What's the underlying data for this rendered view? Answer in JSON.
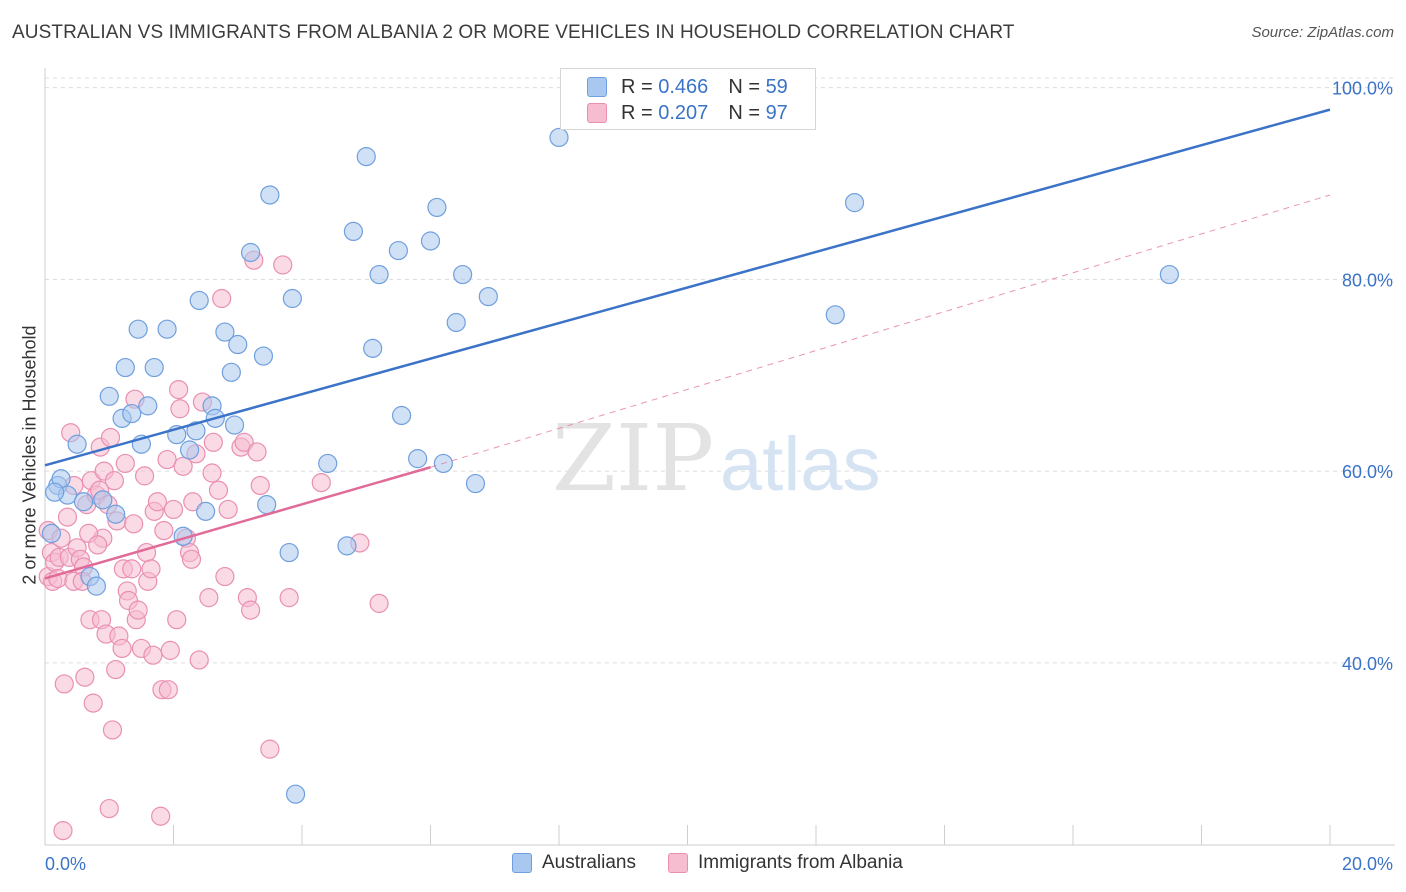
{
  "title": "AUSTRALIAN VS IMMIGRANTS FROM ALBANIA 2 OR MORE VEHICLES IN HOUSEHOLD CORRELATION CHART",
  "source": "Source: ZipAtlas.com",
  "watermark": {
    "zip": "ZIP",
    "atlas": "atlas"
  },
  "colors": {
    "blue": "#3b73c8",
    "blue_fill": "#a9c8ef",
    "blue_stroke": "#6f9fde",
    "pink": "#e06a98",
    "pink_fill": "#f6bcd0",
    "pink_stroke": "#ea8fb2",
    "tick_label": "#3b73c8"
  },
  "stats": {
    "australians": {
      "r_label": "R = ",
      "r_value": "0.466",
      "n_label": "N = ",
      "n_value": "59"
    },
    "albania": {
      "r_label": "R = ",
      "r_value": "0.207",
      "n_label": "N = ",
      "n_value": "97"
    }
  },
  "legend": {
    "australians": "Australians",
    "albania": "Immigrants from Albania"
  },
  "chart_data": {
    "type": "scatter",
    "title": "AUSTRALIAN VS IMMIGRANTS FROM ALBANIA 2 OR MORE VEHICLES IN HOUSEHOLD CORRELATION CHART",
    "xlabel": "",
    "ylabel": "2 or more Vehicles in Household",
    "xlim": [
      0,
      20
    ],
    "ylim": [
      21,
      101
    ],
    "x_tick_labels": [
      "0.0%",
      "20.0%"
    ],
    "y_ticks": [
      40,
      60,
      80,
      100
    ],
    "y_tick_labels": [
      "40.0%",
      "60.0%",
      "80.0%",
      "100.0%"
    ],
    "grid": true,
    "series": [
      {
        "name": "Australians",
        "points": [
          [
            0.1,
            53.5
          ],
          [
            0.2,
            58.5
          ],
          [
            0.25,
            59.2
          ],
          [
            0.35,
            57.5
          ],
          [
            0.5,
            62.8
          ],
          [
            0.6,
            56.8
          ],
          [
            0.7,
            49.0
          ],
          [
            0.8,
            48.0
          ],
          [
            0.9,
            57.0
          ],
          [
            1.0,
            67.8
          ],
          [
            1.1,
            55.5
          ],
          [
            1.2,
            65.5
          ],
          [
            1.25,
            70.8
          ],
          [
            1.35,
            66.0
          ],
          [
            1.45,
            74.8
          ],
          [
            1.5,
            62.8
          ],
          [
            1.6,
            66.8
          ],
          [
            1.7,
            70.8
          ],
          [
            1.9,
            74.8
          ],
          [
            2.05,
            63.8
          ],
          [
            2.15,
            53.2
          ],
          [
            2.25,
            62.2
          ],
          [
            2.35,
            64.2
          ],
          [
            2.4,
            77.8
          ],
          [
            2.5,
            55.8
          ],
          [
            2.6,
            66.8
          ],
          [
            2.65,
            65.5
          ],
          [
            2.8,
            74.5
          ],
          [
            2.9,
            70.3
          ],
          [
            2.95,
            64.8
          ],
          [
            3.0,
            73.2
          ],
          [
            3.2,
            82.8
          ],
          [
            3.4,
            72.0
          ],
          [
            3.45,
            56.5
          ],
          [
            3.5,
            88.8
          ],
          [
            3.8,
            51.5
          ],
          [
            3.85,
            78.0
          ],
          [
            3.9,
            26.3
          ],
          [
            4.4,
            60.8
          ],
          [
            4.7,
            52.2
          ],
          [
            4.8,
            85.0
          ],
          [
            5.0,
            92.8
          ],
          [
            5.1,
            72.8
          ],
          [
            5.2,
            80.5
          ],
          [
            5.5,
            83.0
          ],
          [
            5.55,
            65.8
          ],
          [
            5.8,
            61.3
          ],
          [
            6.0,
            84.0
          ],
          [
            6.1,
            87.5
          ],
          [
            6.2,
            60.8
          ],
          [
            6.4,
            75.5
          ],
          [
            6.5,
            80.5
          ],
          [
            6.7,
            58.7
          ],
          [
            6.9,
            78.2
          ],
          [
            8.0,
            94.8
          ],
          [
            12.3,
            76.3
          ],
          [
            12.6,
            88.0
          ],
          [
            17.5,
            80.5
          ],
          [
            0.15,
            57.8
          ]
        ]
      },
      {
        "name": "Immigrants from Albania",
        "points": [
          [
            0.05,
            53.8
          ],
          [
            0.05,
            49.0
          ],
          [
            0.1,
            51.5
          ],
          [
            0.12,
            48.5
          ],
          [
            0.15,
            50.5
          ],
          [
            0.2,
            48.8
          ],
          [
            0.22,
            51.0
          ],
          [
            0.25,
            53.0
          ],
          [
            0.28,
            22.5
          ],
          [
            0.3,
            37.8
          ],
          [
            0.35,
            55.2
          ],
          [
            0.38,
            51.0
          ],
          [
            0.4,
            64.0
          ],
          [
            0.45,
            48.5
          ],
          [
            0.5,
            52.0
          ],
          [
            0.55,
            50.8
          ],
          [
            0.6,
            50.0
          ],
          [
            0.62,
            38.5
          ],
          [
            0.65,
            56.5
          ],
          [
            0.7,
            44.5
          ],
          [
            0.72,
            59.0
          ],
          [
            0.75,
            35.8
          ],
          [
            0.8,
            57.5
          ],
          [
            0.85,
            58.0
          ],
          [
            0.88,
            44.5
          ],
          [
            0.9,
            53.0
          ],
          [
            0.92,
            60.0
          ],
          [
            0.95,
            43.0
          ],
          [
            0.98,
            56.5
          ],
          [
            1.0,
            24.8
          ],
          [
            1.05,
            33.0
          ],
          [
            1.08,
            59.0
          ],
          [
            1.1,
            39.3
          ],
          [
            1.12,
            54.8
          ],
          [
            1.15,
            42.8
          ],
          [
            1.2,
            41.5
          ],
          [
            1.22,
            49.8
          ],
          [
            1.25,
            60.8
          ],
          [
            1.28,
            47.5
          ],
          [
            1.3,
            46.5
          ],
          [
            1.35,
            49.8
          ],
          [
            1.38,
            54.5
          ],
          [
            1.4,
            67.5
          ],
          [
            1.42,
            44.5
          ],
          [
            1.45,
            45.5
          ],
          [
            1.5,
            41.5
          ],
          [
            1.55,
            59.5
          ],
          [
            1.58,
            51.5
          ],
          [
            1.6,
            48.5
          ],
          [
            1.65,
            49.8
          ],
          [
            1.68,
            40.8
          ],
          [
            1.7,
            55.8
          ],
          [
            1.75,
            56.8
          ],
          [
            1.8,
            24.0
          ],
          [
            1.82,
            37.2
          ],
          [
            1.85,
            53.8
          ],
          [
            1.9,
            61.2
          ],
          [
            1.92,
            37.2
          ],
          [
            1.95,
            41.3
          ],
          [
            2.0,
            56.0
          ],
          [
            2.05,
            44.5
          ],
          [
            2.08,
            68.5
          ],
          [
            2.1,
            66.5
          ],
          [
            2.15,
            60.5
          ],
          [
            2.2,
            53.0
          ],
          [
            2.25,
            51.5
          ],
          [
            2.28,
            50.8
          ],
          [
            2.3,
            56.8
          ],
          [
            2.35,
            61.8
          ],
          [
            2.4,
            40.3
          ],
          [
            2.45,
            67.2
          ],
          [
            2.55,
            46.8
          ],
          [
            2.6,
            59.8
          ],
          [
            2.62,
            63.0
          ],
          [
            2.7,
            58.0
          ],
          [
            2.75,
            78.0
          ],
          [
            2.8,
            49.0
          ],
          [
            2.85,
            56.0
          ],
          [
            3.05,
            62.5
          ],
          [
            3.1,
            63.0
          ],
          [
            3.15,
            46.8
          ],
          [
            3.2,
            45.5
          ],
          [
            3.25,
            82.0
          ],
          [
            3.3,
            62.0
          ],
          [
            3.35,
            58.5
          ],
          [
            3.5,
            31.0
          ],
          [
            3.7,
            81.5
          ],
          [
            3.8,
            46.8
          ],
          [
            4.3,
            58.8
          ],
          [
            4.9,
            52.5
          ],
          [
            5.2,
            46.2
          ],
          [
            0.58,
            48.5
          ],
          [
            0.68,
            53.5
          ],
          [
            0.82,
            52.3
          ],
          [
            0.86,
            62.5
          ],
          [
            1.02,
            63.5
          ],
          [
            0.45,
            58.5
          ]
        ]
      }
    ],
    "trend_lines": [
      {
        "series": "Australians",
        "solid": [
          [
            0,
            60.6
          ],
          [
            20,
            97.7
          ]
        ]
      },
      {
        "series": "Immigrants from Albania",
        "solid": [
          [
            0,
            48.8
          ],
          [
            6.0,
            60.4
          ]
        ],
        "dashed": [
          [
            6.0,
            60.4
          ],
          [
            20,
            88.8
          ]
        ]
      }
    ]
  }
}
